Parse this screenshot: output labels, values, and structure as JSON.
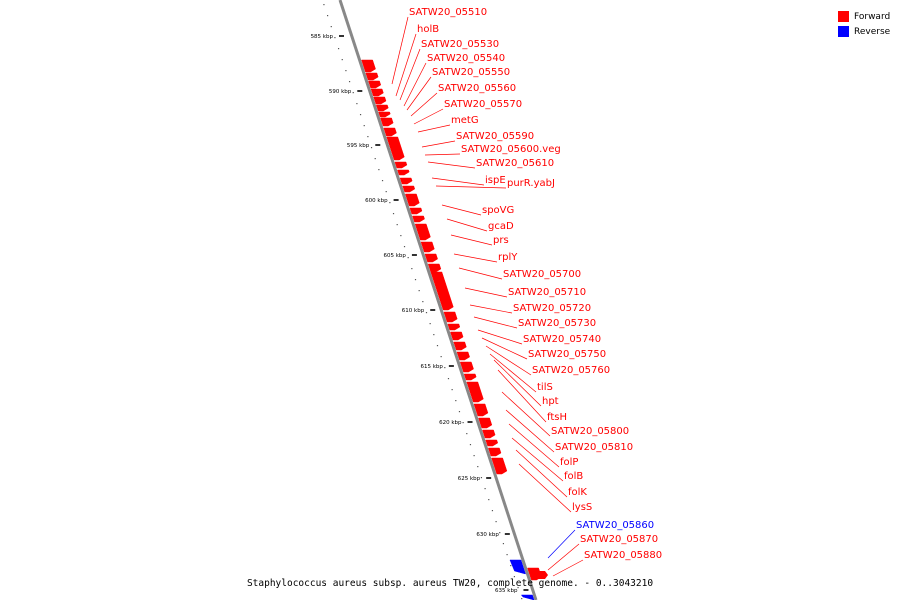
{
  "legend": {
    "forward_label": "Forward",
    "reverse_label": "Reverse",
    "forward_color": "#ff0000",
    "reverse_color": "#0000ff"
  },
  "caption": "Staphylococcus aureus subsp. aureus TW20, complete genome. - 0..3043210",
  "scale": {
    "ticks": [
      "585 kbp",
      "590 kbp",
      "595 kbp",
      "600 kbp",
      "605 kbp",
      "610 kbp",
      "615 kbp",
      "620 kbp",
      "625 kbp",
      "630 kbp",
      "635 kbp"
    ]
  },
  "genes": [
    {
      "name": "SATW20_05510",
      "strand": "forward"
    },
    {
      "name": "holB",
      "strand": "forward"
    },
    {
      "name": "SATW20_05530",
      "strand": "forward"
    },
    {
      "name": "SATW20_05540",
      "strand": "forward"
    },
    {
      "name": "SATW20_05550",
      "strand": "forward"
    },
    {
      "name": "SATW20_05560",
      "strand": "forward"
    },
    {
      "name": "SATW20_05570",
      "strand": "forward"
    },
    {
      "name": "metG",
      "strand": "forward"
    },
    {
      "name": "SATW20_05590",
      "strand": "forward"
    },
    {
      "name": "SATW20_05600.veg",
      "strand": "forward"
    },
    {
      "name": "SATW20_05610",
      "strand": "forward"
    },
    {
      "name": "ispE",
      "strand": "forward"
    },
    {
      "name": "purR.yabJ",
      "strand": "forward"
    },
    {
      "name": "spoVG",
      "strand": "forward"
    },
    {
      "name": "gcaD",
      "strand": "forward"
    },
    {
      "name": "prs",
      "strand": "forward"
    },
    {
      "name": "rplY",
      "strand": "forward"
    },
    {
      "name": "SATW20_05700",
      "strand": "forward"
    },
    {
      "name": "SATW20_05710",
      "strand": "forward"
    },
    {
      "name": "SATW20_05720",
      "strand": "forward"
    },
    {
      "name": "SATW20_05730",
      "strand": "forward"
    },
    {
      "name": "SATW20_05740",
      "strand": "forward"
    },
    {
      "name": "SATW20_05750",
      "strand": "forward"
    },
    {
      "name": "SATW20_05760",
      "strand": "forward"
    },
    {
      "name": "tilS",
      "strand": "forward"
    },
    {
      "name": "hpt",
      "strand": "forward"
    },
    {
      "name": "ftsH",
      "strand": "forward"
    },
    {
      "name": "SATW20_05800",
      "strand": "forward"
    },
    {
      "name": "SATW20_05810",
      "strand": "forward"
    },
    {
      "name": "folP",
      "strand": "forward"
    },
    {
      "name": "folB",
      "strand": "forward"
    },
    {
      "name": "folK",
      "strand": "forward"
    },
    {
      "name": "lysS",
      "strand": "forward"
    },
    {
      "name": "SATW20_05860",
      "strand": "reverse"
    },
    {
      "name": "SATW20_05870",
      "strand": "forward"
    },
    {
      "name": "SATW20_05880",
      "strand": "forward"
    }
  ]
}
